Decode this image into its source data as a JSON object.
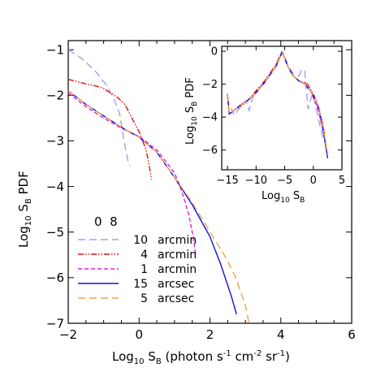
{
  "chart_data": [
    {
      "type": "line",
      "panel": "main",
      "xlabel_main": "Log",
      "xlabel_sub": "10",
      "xlabel_mid": " S",
      "xlabel_sub2": "B",
      "xlabel_rest": " (photon s",
      "xlabel_sup1": "-1",
      "xlabel_rest2": " cm",
      "xlabel_sup2": "-2",
      "xlabel_rest3": " sr",
      "xlabel_sup3": "-1",
      "xlabel_end": ")",
      "ylabel_main": "Log",
      "ylabel_sub": "10",
      "ylabel_mid": " S",
      "ylabel_sub2": "B",
      "ylabel_rest": " PDF",
      "xlim": [
        -2,
        6
      ],
      "ylim": [
        -7,
        -0.8
      ],
      "xticks": [
        "-2",
        "0",
        "2",
        "4",
        "6"
      ],
      "yticks": [
        "-7",
        "-6",
        "-5",
        "-4",
        "-3",
        "-2",
        "-1"
      ],
      "legend_title": "0  8",
      "legend_placement": "bottom-left",
      "series": [
        {
          "name": "10",
          "unit": "arcmin",
          "color": "#a0a0f0",
          "dash": "long",
          "x": [
            -2.0,
            -1.6,
            -1.2,
            -0.9,
            -0.7,
            -0.55,
            -0.45,
            -0.35,
            -0.3,
            -0.25
          ],
          "y": [
            -1.0,
            -1.2,
            -1.5,
            -1.8,
            -2.1,
            -2.4,
            -2.9,
            -3.3,
            -3.5,
            -3.55
          ]
        },
        {
          "name": "4",
          "unit": "arcmin",
          "color": "#e81010",
          "dash": "dashdotdot",
          "x": [
            -2.0,
            -1.5,
            -1.2,
            -1.0,
            -0.8,
            -0.6,
            -0.4,
            -0.2,
            0.0,
            0.2,
            0.3,
            0.35
          ],
          "y": [
            -1.65,
            -1.75,
            -1.8,
            -1.85,
            -1.95,
            -2.05,
            -2.2,
            -2.5,
            -2.8,
            -3.2,
            -3.6,
            -3.85
          ]
        },
        {
          "name": "1",
          "unit": "arcmin",
          "color": "#e020d0",
          "dash": "short",
          "x": [
            -2.0,
            -1.5,
            -1.0,
            -0.5,
            0.0,
            0.5,
            1.0,
            1.2,
            1.4,
            1.5,
            1.6
          ],
          "y": [
            -1.95,
            -2.25,
            -2.5,
            -2.72,
            -2.9,
            -3.2,
            -3.7,
            -4.1,
            -4.6,
            -5.0,
            -5.5
          ]
        },
        {
          "name": "15",
          "unit": "arcsec",
          "color": "#1010e0",
          "dash": "solid",
          "x": [
            -2.0,
            -1.5,
            -1.0,
            -0.5,
            0.0,
            0.5,
            1.0,
            1.5,
            2.0,
            2.3,
            2.6,
            2.75
          ],
          "y": [
            -1.9,
            -2.2,
            -2.45,
            -2.7,
            -2.92,
            -3.25,
            -3.8,
            -4.4,
            -5.1,
            -5.7,
            -6.4,
            -6.8
          ]
        },
        {
          "name": "5",
          "unit": "arcsec",
          "color": "#f0a050",
          "dash": "long",
          "x": [
            -2.0,
            -1.5,
            -1.0,
            -0.5,
            0.0,
            0.5,
            1.0,
            1.5,
            2.0,
            2.4,
            2.7,
            3.0,
            3.1
          ],
          "y": [
            -1.9,
            -2.2,
            -2.45,
            -2.7,
            -2.92,
            -3.25,
            -3.8,
            -4.35,
            -5.0,
            -5.5,
            -5.95,
            -6.6,
            -7.0
          ]
        }
      ]
    },
    {
      "type": "line",
      "panel": "inset",
      "xlabel_main": "Log",
      "xlabel_sub": "10",
      "xlabel_mid": " S",
      "xlabel_sub2": "B",
      "ylabel_main": "Log",
      "ylabel_sub": "10",
      "ylabel_mid": " S",
      "ylabel_sub2": "B",
      "ylabel_rest": " PDF",
      "xlim": [
        -16,
        5
      ],
      "ylim": [
        -7.2,
        0.3
      ],
      "xticks": [
        "-15",
        "-10",
        "-5",
        "0",
        "5"
      ],
      "yticks": [
        "-6",
        "-4",
        "-2",
        "0"
      ],
      "series": [
        {
          "name": "10",
          "color": "#a0a0f0",
          "dash": "long",
          "x": [
            -15.0,
            -14.7,
            -14.3,
            -13.8,
            -13.2,
            -12.5,
            -11.8,
            -11.2,
            -10.6,
            -10.0,
            -9.0,
            -8.0,
            -7.0,
            -6.0,
            -5.5,
            -5.0,
            -4.5,
            -3.5,
            -2.5,
            -2.0,
            -1.5,
            -0.9,
            -0.5,
            -0.2,
            0.3,
            1.0,
            1.5,
            2.0
          ],
          "y": [
            -2.7,
            -3.8,
            -3.5,
            -3.9,
            -3.6,
            -3.3,
            -3.0,
            -3.6,
            -2.8,
            -2.6,
            -2.0,
            -1.6,
            -1.1,
            -0.5,
            0.0,
            -0.3,
            -0.8,
            -1.4,
            -1.5,
            -1.1,
            -1.2,
            -3.5,
            -3.0,
            -2.6,
            -3.2,
            -4.3,
            -5.0,
            -5.5
          ]
        },
        {
          "name": "4",
          "color": "#e81010",
          "dash": "dashdotdot",
          "x": [
            -15.0,
            -14.7,
            -14.3,
            -13.5,
            -12.5,
            -11.5,
            -10.5,
            -9.5,
            -8.5,
            -7.5,
            -6.5,
            -6.0,
            -5.5,
            -5.0,
            -4.5,
            -3.5,
            -2.5,
            -1.5,
            -1.0,
            -0.5,
            0.0,
            0.5,
            1.0,
            1.5,
            2.0
          ],
          "y": [
            -2.6,
            -3.8,
            -3.7,
            -3.5,
            -3.3,
            -3.0,
            -2.6,
            -2.2,
            -1.8,
            -1.3,
            -0.8,
            -0.4,
            -0.1,
            -0.4,
            -0.9,
            -1.5,
            -1.8,
            -1.9,
            -2.0,
            -2.3,
            -2.6,
            -3.0,
            -3.5,
            -4.2,
            -5.0
          ]
        },
        {
          "name": "1",
          "color": "#e020d0",
          "dash": "short",
          "x": [
            -15.0,
            -14.7,
            -14.2,
            -13.5,
            -12.5,
            -11.5,
            -10.5,
            -9.5,
            -8.5,
            -7.5,
            -6.5,
            -6.0,
            -5.5,
            -5.0,
            -4.5,
            -3.5,
            -2.5,
            -1.5,
            -0.5,
            0.5,
            1.0,
            1.5,
            2.0
          ],
          "y": [
            -2.6,
            -3.8,
            -3.7,
            -3.5,
            -3.2,
            -3.0,
            -2.7,
            -2.3,
            -1.9,
            -1.4,
            -0.9,
            -0.5,
            -0.1,
            -0.4,
            -0.9,
            -1.5,
            -1.8,
            -2.0,
            -2.4,
            -3.2,
            -3.8,
            -4.5,
            -5.2
          ]
        },
        {
          "name": "15",
          "color": "#1010e0",
          "dash": "solid",
          "x": [
            -15.0,
            -14.7,
            -14.2,
            -13.5,
            -12.5,
            -11.5,
            -10.5,
            -9.5,
            -8.5,
            -7.5,
            -6.5,
            -6.0,
            -5.5,
            -5.0,
            -4.5,
            -3.5,
            -2.5,
            -1.5,
            -0.5,
            0.5,
            1.0,
            1.5,
            2.0,
            2.5
          ],
          "y": [
            -2.6,
            -3.8,
            -3.7,
            -3.5,
            -3.2,
            -3.0,
            -2.7,
            -2.3,
            -1.9,
            -1.4,
            -0.9,
            -0.5,
            -0.1,
            -0.4,
            -0.9,
            -1.5,
            -1.8,
            -2.0,
            -2.4,
            -3.0,
            -3.6,
            -4.4,
            -5.4,
            -6.5
          ]
        },
        {
          "name": "5",
          "color": "#f0a050",
          "dash": "long",
          "x": [
            -15.0,
            -14.7,
            -14.2,
            -13.5,
            -12.5,
            -11.5,
            -10.5,
            -9.5,
            -8.5,
            -7.5,
            -6.5,
            -6.0,
            -5.5,
            -5.0,
            -4.5,
            -3.5,
            -2.5,
            -1.5,
            -0.5,
            0.5,
            1.0,
            1.5,
            2.0,
            2.5
          ],
          "y": [
            -2.6,
            -3.8,
            -3.7,
            -3.5,
            -3.2,
            -3.0,
            -2.7,
            -2.3,
            -1.9,
            -1.4,
            -0.9,
            -0.5,
            -0.1,
            -0.4,
            -0.9,
            -1.5,
            -1.8,
            -2.0,
            -2.4,
            -3.0,
            -3.6,
            -4.3,
            -5.2,
            -6.3
          ]
        }
      ]
    }
  ]
}
